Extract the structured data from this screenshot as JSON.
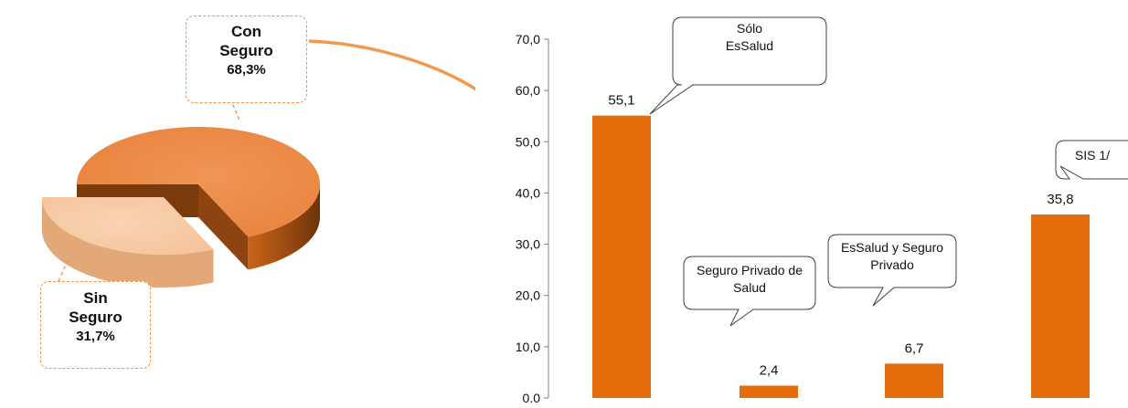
{
  "pie_labels": {
    "con_line1": "Con",
    "con_line2": "Seguro",
    "con_pct": "68,3%",
    "sin_line1": "Sin",
    "sin_line2": "Seguro",
    "sin_pct": "31,7%"
  },
  "bar_callouts": {
    "solo_line1": "Sólo",
    "solo_line2": "EsSalud",
    "privado_line1": "Seguro Privado de",
    "privado_line2": "Salud",
    "essalud_privado_line1": "EsSalud y Seguro",
    "essalud_privado_line2": "Privado",
    "sis": "SIS 1/"
  },
  "colors": {
    "bar": "#e46c0a",
    "pie_con": "#e8813a",
    "pie_con_side": "#9a4a12",
    "pie_sin": "#f4c39a",
    "pie_sin_side": "#e3a878",
    "callout_border": "#f0924a",
    "arrow": "#f09a50"
  },
  "chart_data": [
    {
      "type": "pie",
      "slices": [
        {
          "label": "Con Seguro",
          "value": 68.3,
          "value_label": "68,3%"
        },
        {
          "label": "Sin Seguro",
          "value": 31.7,
          "value_label": "31,7%"
        }
      ]
    },
    {
      "type": "bar",
      "categories": [
        "Sólo EsSalud",
        "Seguro Privado de Salud",
        "EsSalud y Seguro Privado",
        "SIS 1/"
      ],
      "values": [
        55.1,
        2.4,
        6.7,
        35.8
      ],
      "value_labels": [
        "55,1",
        "2,4",
        "6,7",
        "35,8"
      ],
      "ylim": [
        0,
        70
      ],
      "yticks": [
        "0.0",
        "10,0",
        "20,0",
        "30,0",
        "40,0",
        "50,0",
        "60,0",
        "70,0"
      ],
      "grid": false
    }
  ]
}
